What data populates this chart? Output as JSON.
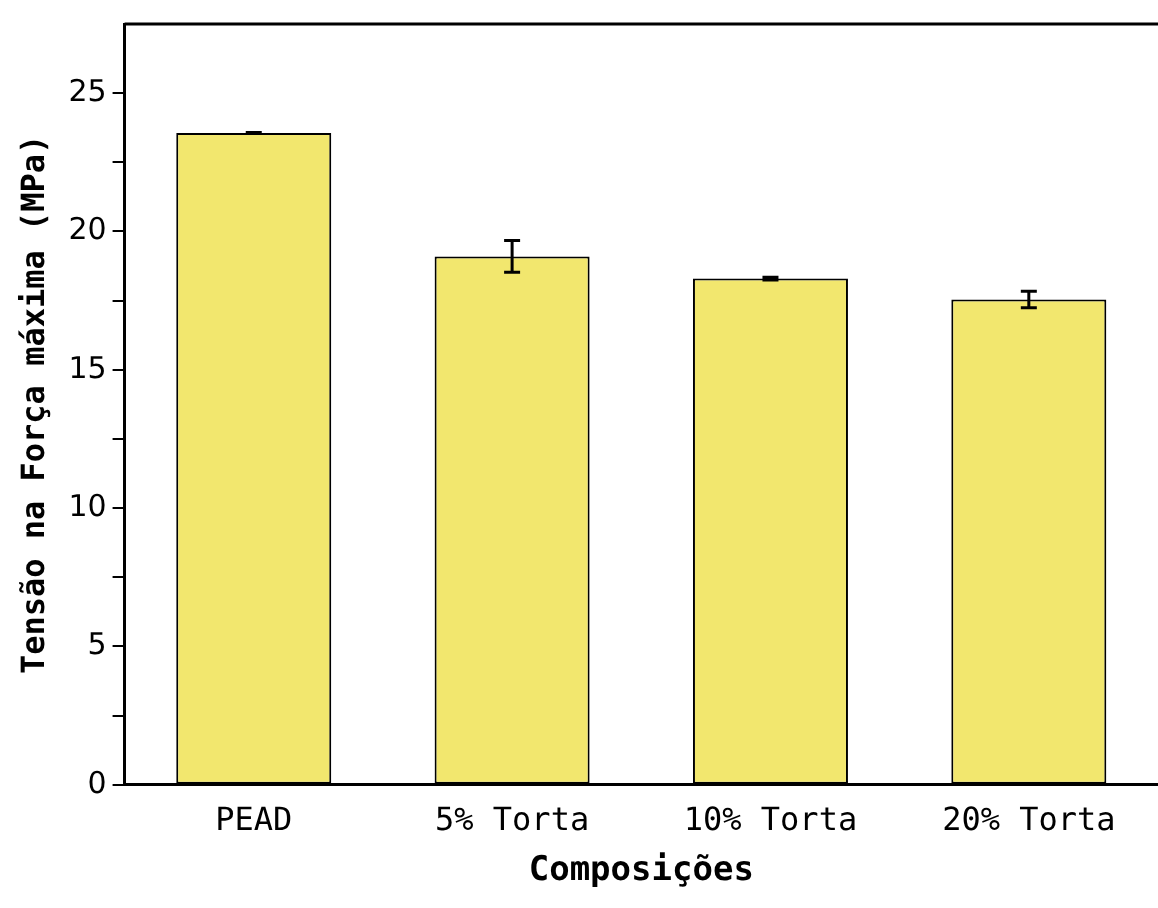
{
  "chart_data": {
    "type": "bar",
    "xlabel": "Composições",
    "ylabel": "Tensão na Força máxima (MPa)",
    "categories": [
      "PEAD",
      "5% Torta",
      "10% Torta",
      "20% Torta"
    ],
    "values": [
      23.56,
      19.1,
      18.3,
      17.54
    ],
    "errors": [
      0.02,
      0.57,
      0.05,
      0.3
    ],
    "color": "#f2e76e",
    "ylim": [
      0,
      27.5
    ],
    "yticks": [
      0,
      {
        "value": 2.5,
        "label": null
      },
      5,
      {
        "value": 7.5,
        "label": null
      },
      10,
      {
        "value": 12.5,
        "label": null
      },
      15,
      {
        "value": 17.5,
        "label": null
      },
      20,
      {
        "value": 22.5,
        "label": null
      },
      25
    ],
    "grid": false,
    "legend": false
  }
}
